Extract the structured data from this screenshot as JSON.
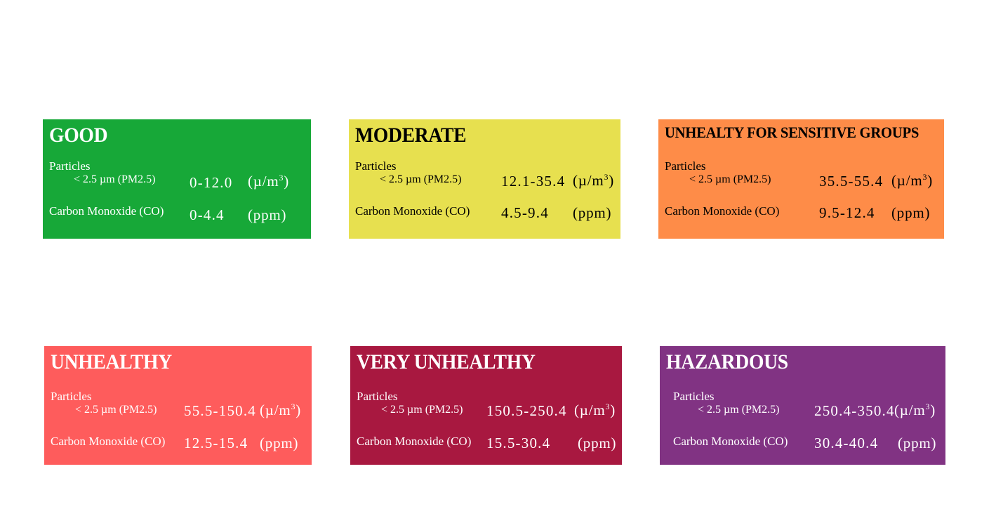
{
  "particles_label": "Particles",
  "pm_label": "< 2.5 µm (PM2.5)",
  "co_label": "Carbon Monoxide (CO)",
  "unit_pm_prefix": "(µ/m",
  "unit_pm_exp": "3",
  "unit_pm_suffix": ")",
  "unit_co": "(ppm)",
  "cards": [
    {
      "title": "GOOD",
      "color": "#17a838",
      "text_color": "#ffffff",
      "pm_range": "0-12.0",
      "co_range": "0-4.4"
    },
    {
      "title": "MODERATE",
      "color": "#e7e04f",
      "text_color": "#000000",
      "pm_range": "12.1-35.4",
      "co_range": "4.5-9.4"
    },
    {
      "title": "UNHEALTY FOR SENSITIVE GROUPS",
      "color": "#fe8c48",
      "text_color": "#000000",
      "pm_range": "35.5-55.4",
      "co_range": "9.5-12.4"
    },
    {
      "title": "UNHEALTHY",
      "color": "#fe5c5c",
      "text_color": "#ffffff",
      "pm_range": "55.5-150.4",
      "co_range": "12.5-15.4"
    },
    {
      "title": "VERY UNHEALTHY",
      "color": "#a81840",
      "text_color": "#ffffff",
      "pm_range": "150.5-250.4",
      "co_range": "15.5-30.4"
    },
    {
      "title": "HAZARDOUS",
      "color": "#813383",
      "text_color": "#ffffff",
      "pm_range": "250.4-350.4",
      "co_range": "30.4-40.4"
    }
  ]
}
